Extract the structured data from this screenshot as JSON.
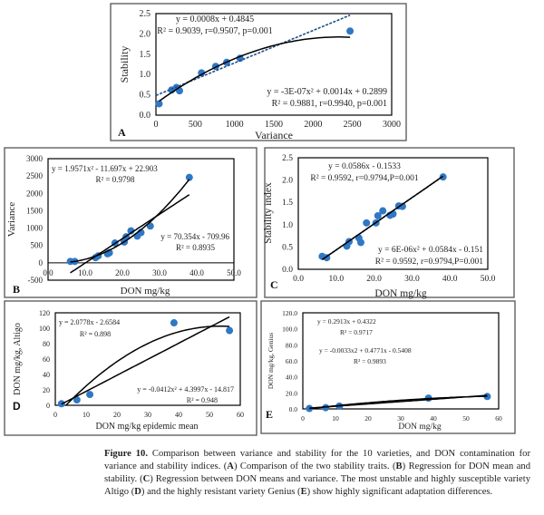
{
  "chart_data": [
    {
      "panel": "A",
      "type": "scatter",
      "xlabel": "Variance",
      "ylabel": "Stability",
      "xlim": [
        0,
        3000
      ],
      "ylim": [
        0,
        2.5
      ],
      "xticks": [
        0,
        500,
        1000,
        1500,
        2000,
        2500,
        3000
      ],
      "yticks": [
        "0.0",
        "0.5",
        "1.0",
        "1.5",
        "2.0",
        "2.5"
      ],
      "points": [
        [
          40,
          0.28
        ],
        [
          200,
          0.62
        ],
        [
          260,
          0.68
        ],
        [
          300,
          0.6
        ],
        [
          580,
          1.04
        ],
        [
          760,
          1.2
        ],
        [
          900,
          1.3
        ],
        [
          1070,
          1.4
        ],
        [
          2470,
          2.07
        ]
      ],
      "trendlines": [
        {
          "kind": "linear",
          "coef": [
            0.4845,
            0.0008
          ],
          "range": [
            0,
            2470
          ],
          "style": "dashed",
          "label": [
            "y = 0.0008x + 0.4845",
            "R² = 0.9039, r=0.9507, p=0.001"
          ]
        },
        {
          "kind": "poly2",
          "coef": [
            0.2899,
            0.0014,
            -3e-07
          ],
          "range": [
            40,
            2470
          ],
          "style": "solid",
          "label": [
            "y = -3E-07x² + 0.0014x + 0.2899",
            "R² = 0.9881, r=0.9940, p=0.001"
          ]
        }
      ],
      "grid": false,
      "marker_color": "#2f78c4"
    },
    {
      "panel": "B",
      "type": "scatter",
      "xlabel": "DON mg/kg",
      "ylabel": "Variance",
      "xlim": [
        0,
        50
      ],
      "ylim": [
        -500,
        3000
      ],
      "xticks": [
        "0.0",
        "10.0",
        "20.0",
        "30.0",
        "40.0",
        "50.0"
      ],
      "yticks": [
        "-500",
        "0",
        "500",
        "1000",
        "1500",
        "2000",
        "2500",
        "3000"
      ],
      "points": [
        [
          6,
          40
        ],
        [
          7.2,
          40
        ],
        [
          12.8,
          150
        ],
        [
          13.5,
          200
        ],
        [
          16,
          260
        ],
        [
          16.5,
          290
        ],
        [
          18,
          570
        ],
        [
          20.5,
          600
        ],
        [
          21,
          750
        ],
        [
          22.3,
          920
        ],
        [
          24,
          770
        ],
        [
          25,
          870
        ],
        [
          27.5,
          1060
        ],
        [
          38,
          2460
        ]
      ],
      "trendlines": [
        {
          "kind": "poly2",
          "coef": [
            22.903,
            -11.697,
            1.9571
          ],
          "range": [
            6,
            38
          ],
          "style": "solid",
          "label": [
            "y = 1.9571x² - 11.697x + 22.903",
            "R² = 0.9798"
          ]
        },
        {
          "kind": "linear",
          "coef": [
            -709.96,
            70.354
          ],
          "range": [
            6,
            38
          ],
          "style": "solid",
          "label": [
            "y = 70.354x - 709.96",
            "R² = 0.8935"
          ]
        }
      ],
      "grid": false,
      "marker_color": "#2f78c4"
    },
    {
      "panel": "C",
      "type": "scatter",
      "xlabel": "DON mg/kg",
      "ylabel": "Stability index",
      "xlim": [
        0,
        50
      ],
      "ylim": [
        0,
        2.5
      ],
      "xticks": [
        "0.0",
        "10.0",
        "20.0",
        "30.0",
        "40.0",
        "50.0"
      ],
      "yticks": [
        "0.0",
        "0.5",
        "1.0",
        "1.5",
        "2.0",
        "2.5"
      ],
      "points": [
        [
          6.3,
          0.29
        ],
        [
          7.5,
          0.26
        ],
        [
          12.8,
          0.52
        ],
        [
          13.4,
          0.62
        ],
        [
          16,
          0.7
        ],
        [
          16.5,
          0.6
        ],
        [
          18,
          1.04
        ],
        [
          20.5,
          1.04
        ],
        [
          21,
          1.2
        ],
        [
          22.3,
          1.31
        ],
        [
          24.2,
          1.21
        ],
        [
          25,
          1.24
        ],
        [
          26.5,
          1.42
        ],
        [
          27.5,
          1.41
        ],
        [
          38.2,
          2.07
        ]
      ],
      "trendlines": [
        {
          "kind": "linear",
          "coef": [
            -0.1533,
            0.0586
          ],
          "range": [
            6.3,
            38.2
          ],
          "style": "dashed",
          "label": [
            "y = 0.0586x - 0.1533",
            "R² = 0.9592, r=0.9794,P=0.001"
          ]
        },
        {
          "kind": "poly2",
          "coef": [
            -0.151,
            0.0584,
            6e-06
          ],
          "range": [
            6.3,
            38.2
          ],
          "style": "solid",
          "label": [
            "y = 6E-06x² + 0.0584x - 0.151",
            "R² = 0.9592, r=0.9794,P=0.001"
          ]
        }
      ],
      "grid": false,
      "marker_color": "#2f78c4"
    },
    {
      "panel": "D",
      "type": "scatter",
      "xlabel": "DON mg/kg epidemic mean",
      "ylabel": "DON mg/kg, Altigo",
      "xlim": [
        0,
        60
      ],
      "ylim": [
        0,
        120
      ],
      "xticks": [
        "0",
        "10",
        "20",
        "30",
        "40",
        "50",
        "60"
      ],
      "yticks": [
        "0",
        "20",
        "40",
        "60",
        "80",
        "100",
        "120"
      ],
      "points": [
        [
          2,
          2
        ],
        [
          7,
          7
        ],
        [
          11.2,
          14
        ],
        [
          38.5,
          107
        ],
        [
          56.5,
          97
        ]
      ],
      "trendlines": [
        {
          "kind": "linear",
          "coef": [
            -2.6584,
            2.0778
          ],
          "range": [
            2,
            56.5
          ],
          "style": "solid",
          "label": [
            "y = 2.0778x - 2.6584",
            "R² = 0.898"
          ]
        },
        {
          "kind": "poly2",
          "coef": [
            -14.817,
            4.3997,
            -0.0412
          ],
          "range": [
            3.5,
            56.5
          ],
          "style": "solid",
          "label": [
            "y = -0.0412x² + 4.3997x - 14.817",
            "R² = 0.948"
          ]
        }
      ],
      "grid": false,
      "marker_color": "#2f78c4"
    },
    {
      "panel": "E",
      "type": "scatter",
      "xlabel": "DON mg/kg",
      "ylabel": "DON mg/kg, Genius",
      "xlim": [
        0,
        60
      ],
      "ylim": [
        0,
        120
      ],
      "xticks": [
        "0",
        "10",
        "20",
        "30",
        "40",
        "50",
        "60"
      ],
      "yticks": [
        "0.0",
        "20.0",
        "40.0",
        "60.0",
        "80.0",
        "100.0",
        "120.0"
      ],
      "points": [
        [
          2,
          0.5
        ],
        [
          7,
          1.5
        ],
        [
          11.2,
          3.5
        ],
        [
          38.5,
          13.5
        ],
        [
          56.5,
          15.5
        ]
      ],
      "trendlines": [
        {
          "kind": "linear",
          "coef": [
            0.4322,
            0.2913
          ],
          "range": [
            2,
            56.5
          ],
          "style": "solid",
          "label": [
            "y = 0.2913x + 0.4322",
            "R² = 0.9717"
          ]
        },
        {
          "kind": "poly2",
          "coef": [
            -0.5408,
            0.4771,
            -0.0033
          ],
          "range": [
            2,
            56.5
          ],
          "style": "solid",
          "label": [
            "y = -0.0033x2 + 0.4771x - 0.5408",
            "R² = 0.9893"
          ]
        }
      ],
      "grid": false,
      "marker_color": "#2f78c4"
    }
  ],
  "caption": {
    "figure_label": "Figure 10.",
    "text_1": " Comparison between variance and stability for the 10 varieties, and DON contamination for variance and stability indices. (",
    "a": "A",
    "text_2": ") Comparison of the two stability traits. (",
    "b": "B",
    "text_3": ") Regression for DON mean and stability. (",
    "c": "C",
    "text_4": ") Regression between DON means and variance. The most unstable and highly susceptible variety Altigo (",
    "d": "D",
    "text_5": ") and the highly resistant variety Genius (",
    "e": "E",
    "text_6": ") show highly significant adaptation differences."
  }
}
